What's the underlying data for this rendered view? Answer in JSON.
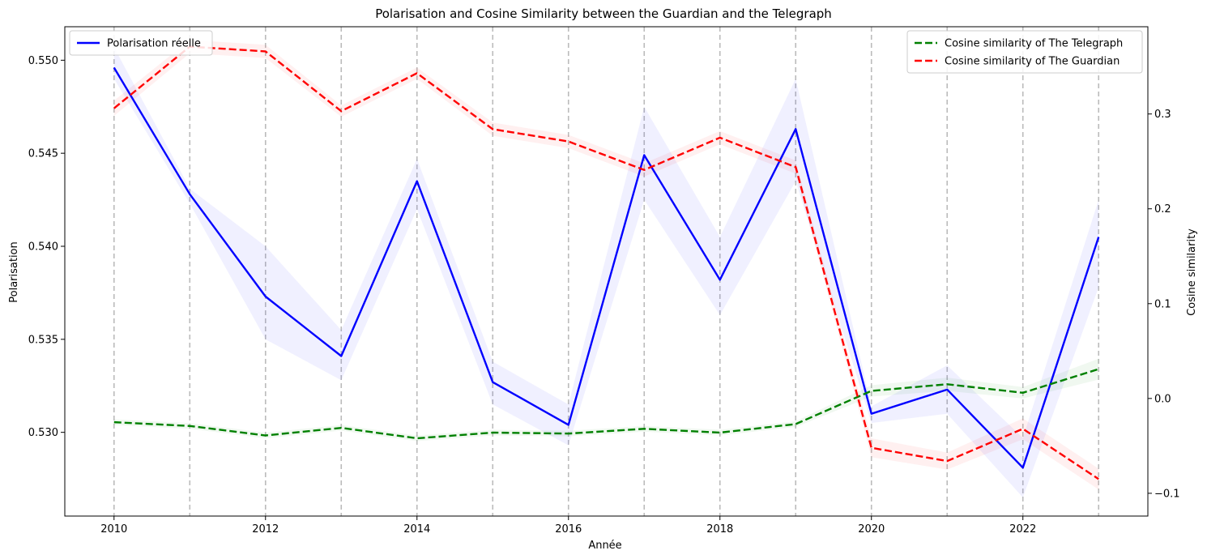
{
  "chart_data": {
    "type": "line",
    "title": "Polarisation and Cosine Similarity between the Guardian and the Telegraph",
    "xlabel": "Année",
    "ylabel_left": "Polarisation",
    "ylabel_right": "Cosine similarity",
    "x": [
      2010,
      2011,
      2012,
      2013,
      2014,
      2015,
      2016,
      2017,
      2018,
      2019,
      2020,
      2021,
      2022,
      2023
    ],
    "xticks": [
      "2010",
      "2012",
      "2014",
      "2016",
      "2018",
      "2020",
      "2022"
    ],
    "xlim": [
      2009.35,
      2023.65
    ],
    "ylim_left": [
      0.5255,
      0.5518
    ],
    "ylim_right": [
      -0.124,
      0.392
    ],
    "yticks_left": [
      "0.530",
      "0.535",
      "0.540",
      "0.545",
      "0.550"
    ],
    "yticks_right": [
      "−0.1",
      "0.0",
      "0.1",
      "0.2",
      "0.3"
    ],
    "vertical_grid": "dashed gray at every year",
    "series": [
      {
        "name": "Polarisation réelle",
        "axis": "left",
        "color": "#0000ff",
        "style": "solid",
        "values": [
          0.5496,
          0.5428,
          0.5373,
          0.5341,
          0.5435,
          0.5327,
          0.5304,
          0.5449,
          0.5382,
          0.5463,
          0.531,
          0.5323,
          0.5281,
          0.5405
        ],
        "band_low": [
          0.549,
          0.5423,
          0.535,
          0.5328,
          0.542,
          0.5315,
          0.5293,
          0.5425,
          0.5363,
          0.5435,
          0.5305,
          0.531,
          0.5265,
          0.5378
        ],
        "band_high": [
          0.5507,
          0.5431,
          0.54,
          0.5355,
          0.5447,
          0.5338,
          0.5315,
          0.5475,
          0.5405,
          0.549,
          0.5314,
          0.5336,
          0.5297,
          0.5425
        ]
      },
      {
        "name": "Cosine similarity of The Telegraph",
        "axis": "right",
        "color": "#008000",
        "style": "dashed",
        "values": [
          -0.025,
          -0.029,
          -0.039,
          -0.031,
          -0.042,
          -0.036,
          -0.037,
          -0.032,
          -0.036,
          -0.027,
          0.008,
          0.015,
          0.006,
          0.031
        ],
        "band_low": [
          -0.028,
          -0.032,
          -0.042,
          -0.034,
          -0.045,
          -0.039,
          -0.04,
          -0.035,
          -0.039,
          -0.03,
          0.002,
          0.008,
          0.0,
          0.02
        ],
        "band_high": [
          -0.022,
          -0.026,
          -0.036,
          -0.028,
          -0.039,
          -0.033,
          -0.034,
          -0.029,
          -0.033,
          -0.024,
          0.014,
          0.022,
          0.012,
          0.042
        ]
      },
      {
        "name": "Cosine similarity of The Guardian",
        "axis": "right",
        "color": "#ff0000",
        "style": "dashed",
        "values": [
          0.306,
          0.371,
          0.366,
          0.303,
          0.343,
          0.284,
          0.271,
          0.241,
          0.275,
          0.244,
          -0.052,
          -0.066,
          -0.032,
          -0.085
        ],
        "band_low": [
          0.298,
          0.364,
          0.359,
          0.297,
          0.337,
          0.277,
          0.264,
          0.234,
          0.268,
          0.237,
          -0.062,
          -0.075,
          -0.043,
          -0.096
        ],
        "band_high": [
          0.314,
          0.378,
          0.373,
          0.309,
          0.349,
          0.291,
          0.278,
          0.248,
          0.282,
          0.251,
          -0.042,
          -0.057,
          -0.021,
          -0.074
        ]
      }
    ],
    "legend_left_position": "upper-left",
    "legend_right_position": "upper-right"
  }
}
